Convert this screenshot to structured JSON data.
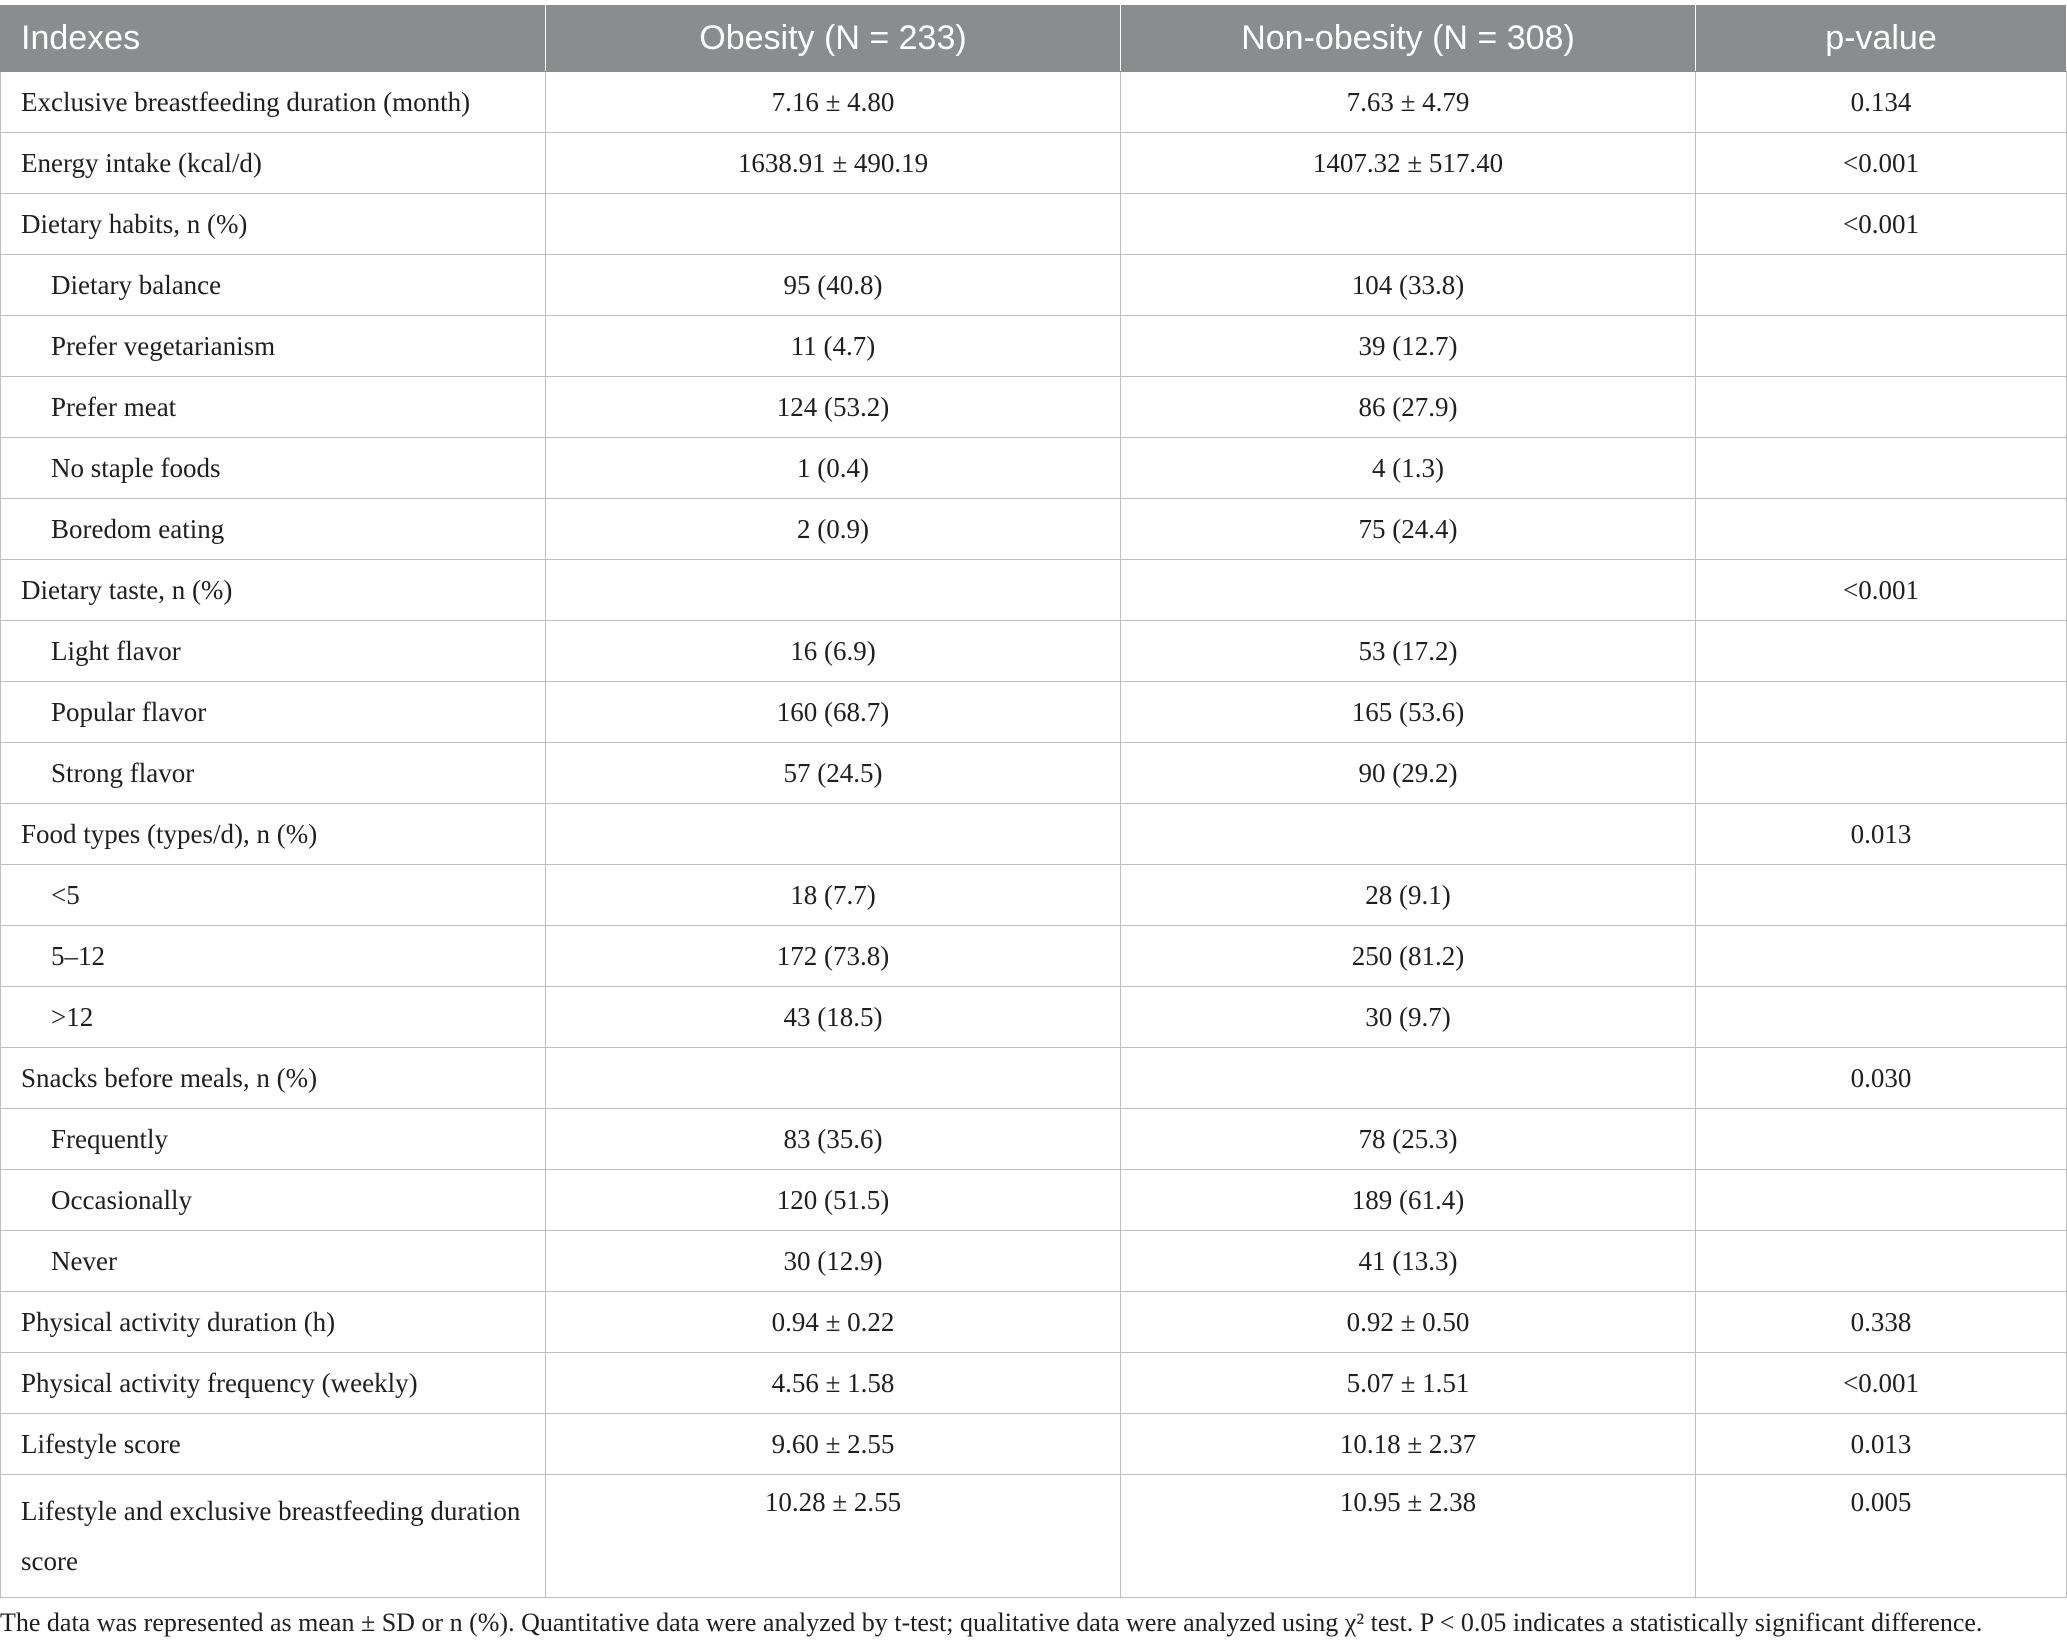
{
  "table": {
    "headers": {
      "col1": "Indexes",
      "col2": "Obesity (N = 233)",
      "col3": "Non-obesity (N = 308)",
      "col4": "p-value"
    },
    "rows": [
      {
        "label": "Exclusive breastfeeding duration (month)",
        "obesity": "7.16 ± 4.80",
        "non_obesity": "7.63 ± 4.79",
        "p": "0.134"
      },
      {
        "label": "Energy intake (kcal/d)",
        "obesity": "1638.91 ± 490.19",
        "non_obesity": "1407.32 ± 517.40",
        "p": "<0.001"
      },
      {
        "label": "Dietary habits, n (%)",
        "obesity": "",
        "non_obesity": "",
        "p": "<0.001"
      },
      {
        "label": "Dietary balance",
        "obesity": "95 (40.8)",
        "non_obesity": "104 (33.8)",
        "p": ""
      },
      {
        "label": "Prefer vegetarianism",
        "obesity": "11 (4.7)",
        "non_obesity": "39 (12.7)",
        "p": ""
      },
      {
        "label": "Prefer meat",
        "obesity": "124 (53.2)",
        "non_obesity": "86 (27.9)",
        "p": ""
      },
      {
        "label": "No staple foods",
        "obesity": "1 (0.4)",
        "non_obesity": "4 (1.3)",
        "p": ""
      },
      {
        "label": "Boredom eating",
        "obesity": "2 (0.9)",
        "non_obesity": "75 (24.4)",
        "p": ""
      },
      {
        "label": "Dietary taste, n (%)",
        "obesity": "",
        "non_obesity": "",
        "p": "<0.001"
      },
      {
        "label": "Light flavor",
        "obesity": "16 (6.9)",
        "non_obesity": "53 (17.2)",
        "p": ""
      },
      {
        "label": "Popular flavor",
        "obesity": "160 (68.7)",
        "non_obesity": "165 (53.6)",
        "p": ""
      },
      {
        "label": "Strong flavor",
        "obesity": "57 (24.5)",
        "non_obesity": "90 (29.2)",
        "p": ""
      },
      {
        "label": "Food types (types/d), n (%)",
        "obesity": "",
        "non_obesity": "",
        "p": "0.013"
      },
      {
        "label": "<5",
        "obesity": "18 (7.7)",
        "non_obesity": "28 (9.1)",
        "p": ""
      },
      {
        "label": "5–12",
        "obesity": "172 (73.8)",
        "non_obesity": "250 (81.2)",
        "p": ""
      },
      {
        "label": ">12",
        "obesity": "43 (18.5)",
        "non_obesity": "30 (9.7)",
        "p": ""
      },
      {
        "label": "Snacks before meals, n (%)",
        "obesity": "",
        "non_obesity": "",
        "p": "0.030"
      },
      {
        "label": "Frequently",
        "obesity": "83 (35.6)",
        "non_obesity": "78 (25.3)",
        "p": ""
      },
      {
        "label": "Occasionally",
        "obesity": "120 (51.5)",
        "non_obesity": "189 (61.4)",
        "p": ""
      },
      {
        "label": "Never",
        "obesity": "30 (12.9)",
        "non_obesity": "41 (13.3)",
        "p": ""
      },
      {
        "label": "Physical activity duration (h)",
        "obesity": "0.94 ± 0.22",
        "non_obesity": "0.92 ± 0.50",
        "p": "0.338"
      },
      {
        "label": "Physical activity frequency (weekly)",
        "obesity": "4.56 ± 1.58",
        "non_obesity": "5.07 ± 1.51",
        "p": "<0.001"
      },
      {
        "label": "Lifestyle score",
        "obesity": "9.60 ± 2.55",
        "non_obesity": "10.18 ± 2.37",
        "p": "0.013"
      },
      {
        "label": "Lifestyle and exclusive breastfeeding duration score",
        "obesity": "10.28 ± 2.55",
        "non_obesity": "10.95 ± 2.38",
        "p": "0.005"
      }
    ]
  },
  "footnote": "The data was represented as mean ± SD or n (%). Quantitative data were analyzed by t-test; qualitative data were analyzed using χ² test. P < 0.05 indicates a statistically significant difference."
}
